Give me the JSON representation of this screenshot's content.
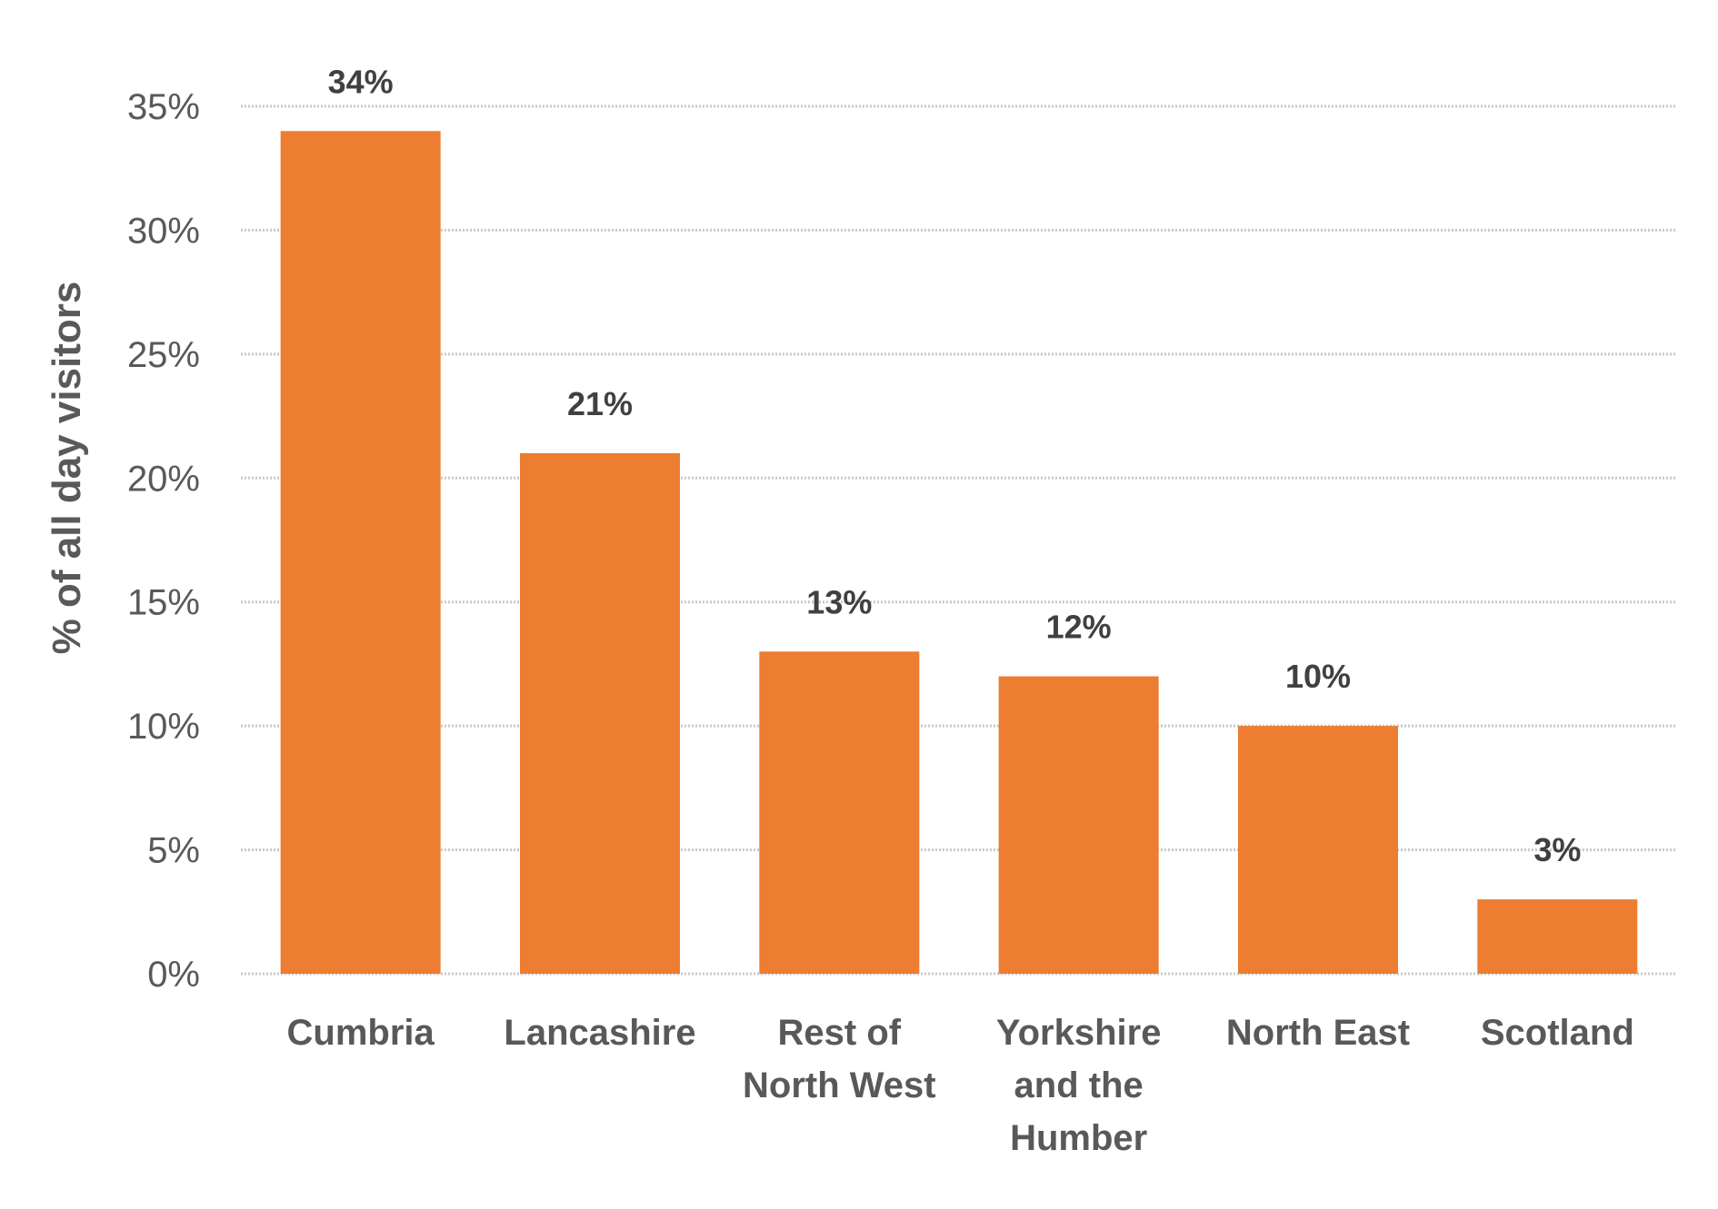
{
  "chart_data": {
    "type": "bar",
    "categories": [
      [
        "Cumbria"
      ],
      [
        "Lancashire"
      ],
      [
        "Rest of",
        "North West"
      ],
      [
        "Yorkshire",
        "and the",
        "Humber"
      ],
      [
        "North East"
      ],
      [
        "Scotland"
      ]
    ],
    "values": [
      34,
      21,
      13,
      12,
      10,
      3
    ],
    "data_labels": [
      "34%",
      "21%",
      "13%",
      "12%",
      "10%",
      "3%"
    ],
    "ylabel": "% of all day visitors",
    "ylim": [
      0,
      35
    ],
    "yticks": [
      0,
      5,
      10,
      15,
      20,
      25,
      30,
      35
    ],
    "ytick_labels": [
      "0%",
      "5%",
      "10%",
      "15%",
      "20%",
      "25%",
      "30%",
      "35%"
    ],
    "grid": true,
    "legend": "none",
    "bar_color": "#ED7D31"
  }
}
